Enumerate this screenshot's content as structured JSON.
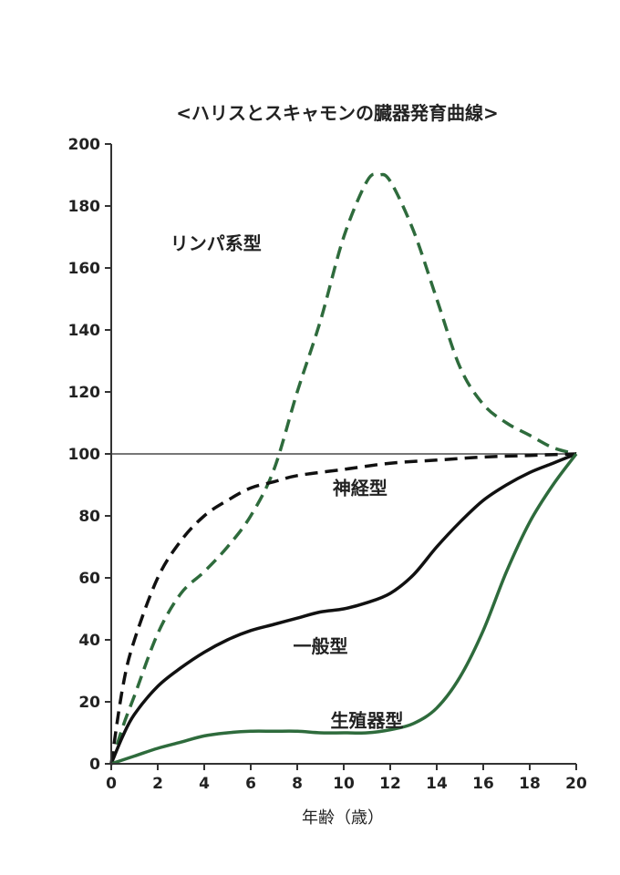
{
  "chart_data": {
    "type": "line",
    "title": "<ハリスとスキャモンの臓器発育曲線>",
    "xlabel": "年齢（歳）",
    "ylabel": "",
    "xlim": [
      0,
      20
    ],
    "ylim": [
      0,
      200
    ],
    "x_ticks": [
      "0",
      "2",
      "4",
      "6",
      "8",
      "10",
      "12",
      "14",
      "16",
      "18",
      "20"
    ],
    "y_ticks": [
      "0",
      "20",
      "40",
      "60",
      "80",
      "100",
      "120",
      "140",
      "160",
      "180",
      "200"
    ],
    "reference_line": 100,
    "grid": false,
    "series": [
      {
        "name": "リンパ系型",
        "color": "#2e6b3c",
        "style": "dashed",
        "x": [
          0,
          0.5,
          1,
          2,
          3,
          4,
          5,
          6,
          7,
          8,
          9,
          10,
          11,
          11.5,
          12,
          13,
          14,
          15,
          16,
          17,
          18,
          19,
          20
        ],
        "y": [
          0,
          12,
          22,
          42,
          55,
          62,
          70,
          80,
          95,
          120,
          143,
          170,
          188,
          190,
          188,
          172,
          150,
          128,
          116,
          110,
          106,
          102,
          100
        ]
      },
      {
        "name": "神経型",
        "color": "#111111",
        "style": "dashed",
        "x": [
          0,
          0.5,
          1,
          2,
          3,
          4,
          5,
          6,
          7,
          8,
          10,
          12,
          14,
          16,
          18,
          20
        ],
        "y": [
          0,
          25,
          40,
          60,
          72,
          80,
          85,
          89,
          91,
          93,
          95,
          97,
          98,
          99,
          99.5,
          100
        ]
      },
      {
        "name": "一般型",
        "color": "#111111",
        "style": "solid",
        "x": [
          0,
          0.5,
          1,
          2,
          3,
          4,
          5,
          6,
          7,
          8,
          9,
          10,
          11,
          12,
          13,
          14,
          15,
          16,
          17,
          18,
          19,
          20
        ],
        "y": [
          0,
          9,
          16,
          25,
          31,
          36,
          40,
          43,
          45,
          47,
          49,
          50,
          52,
          55,
          61,
          70,
          78,
          85,
          90,
          94,
          97,
          100
        ]
      },
      {
        "name": "生殖器型",
        "color": "#2e6b3c",
        "style": "solid",
        "x": [
          0,
          1,
          2,
          3,
          4,
          5,
          6,
          7,
          8,
          9,
          10,
          11,
          12,
          13,
          14,
          15,
          16,
          17,
          18,
          19,
          20
        ],
        "y": [
          0,
          2.5,
          5,
          7,
          9,
          10,
          10.5,
          10.5,
          10.5,
          10,
          10,
          10,
          11,
          13,
          18,
          28,
          43,
          62,
          78,
          90,
          100
        ]
      }
    ],
    "series_labels": [
      {
        "text": "リンパ系型",
        "x": 4.5,
        "y": 168
      },
      {
        "text": "神経型",
        "x": 10.7,
        "y": 89
      },
      {
        "text": "一般型",
        "x": 9.0,
        "y": 38
      },
      {
        "text": "生殖器型",
        "x": 11.0,
        "y": 14
      }
    ]
  }
}
